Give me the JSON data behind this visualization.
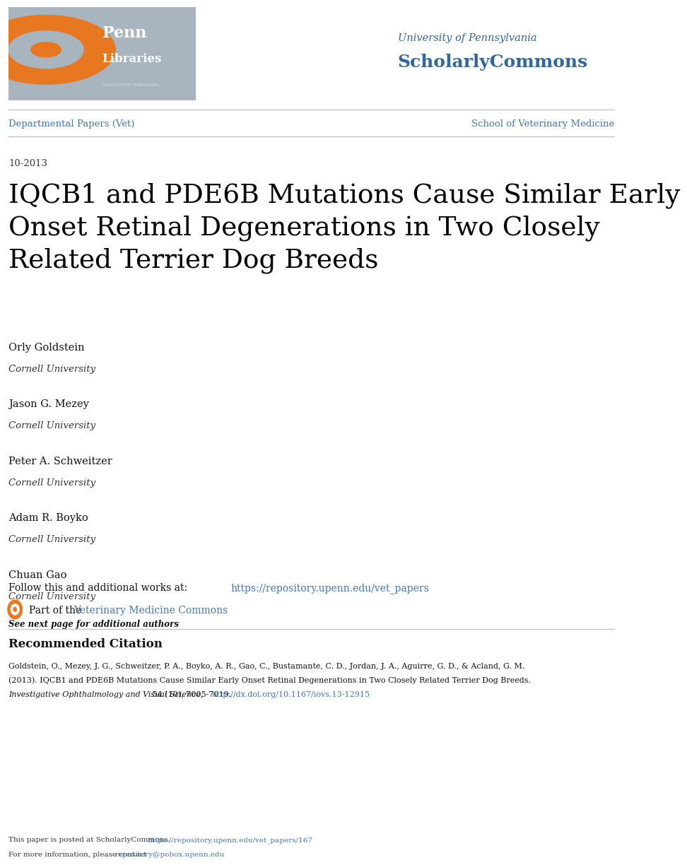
{
  "bg_color": "#ffffff",
  "upenn_line1": "University of Pennsylvania",
  "upenn_line2": "ScholarlyCommons",
  "upenn_color": "#336699",
  "dept_label": "Departmental Papers (Vet)",
  "school_label": "School of Veterinary Medicine",
  "nav_color": "#4477aa",
  "date": "10-2013",
  "title": "IQCB1 and PDE6B Mutations Cause Similar Early\nOnset Retinal Degenerations in Two Closely\nRelated Terrier Dog Breeds",
  "title_color": "#000000",
  "authors": [
    {
      "name": "Orly Goldstein",
      "affil": "Cornell University"
    },
    {
      "name": "Jason G. Mezey",
      "affil": "Cornell University"
    },
    {
      "name": "Peter A. Schweitzer",
      "affil": "Cornell University"
    },
    {
      "name": "Adam R. Boyko",
      "affil": "Cornell University"
    },
    {
      "name": "Chuan Gao",
      "affil": "Cornell University"
    }
  ],
  "see_next": "See next page for additional authors",
  "follow_text": "Follow this and additional works at: ",
  "follow_url": "https://repository.upenn.edu/vet_papers",
  "partof_text": "Part of the ",
  "partof_url": "Veterinary Medicine Commons",
  "rec_citation_title": "Recommended Citation",
  "rec_citation_line1": "Goldstein, O., Mezey, J. G., Schweitzer, P. A., Boyko, A. R., Gao, C., Bustamante, C. D., Jordan, J. A., Aguirre, G. D., & Acland, G. M.",
  "rec_citation_line2": "(2013). IQCB1 and PDE6B Mutations Cause Similar Early Onset Retinal Degenerations in Two Closely Related Terrier Dog Breeds.",
  "rec_citation_journal_italic": "Investigative Ophthalmology and Visual Science,",
  "rec_citation_journal_rest": " 54 (10), 7005-7019. ",
  "rec_citation_doi": "http://dx.doi.org/10.1167/iovs.13-12915",
  "footer1_text": "This paper is posted at ScholarlyCommons. ",
  "footer1_url": "https://repository.upenn.edu/vet_papers/167",
  "footer2_text": "For more information, please contact ",
  "footer2_url": "repository@pobox.upenn.edu",
  "footer2_end": ".",
  "link_color": "#4477aa"
}
